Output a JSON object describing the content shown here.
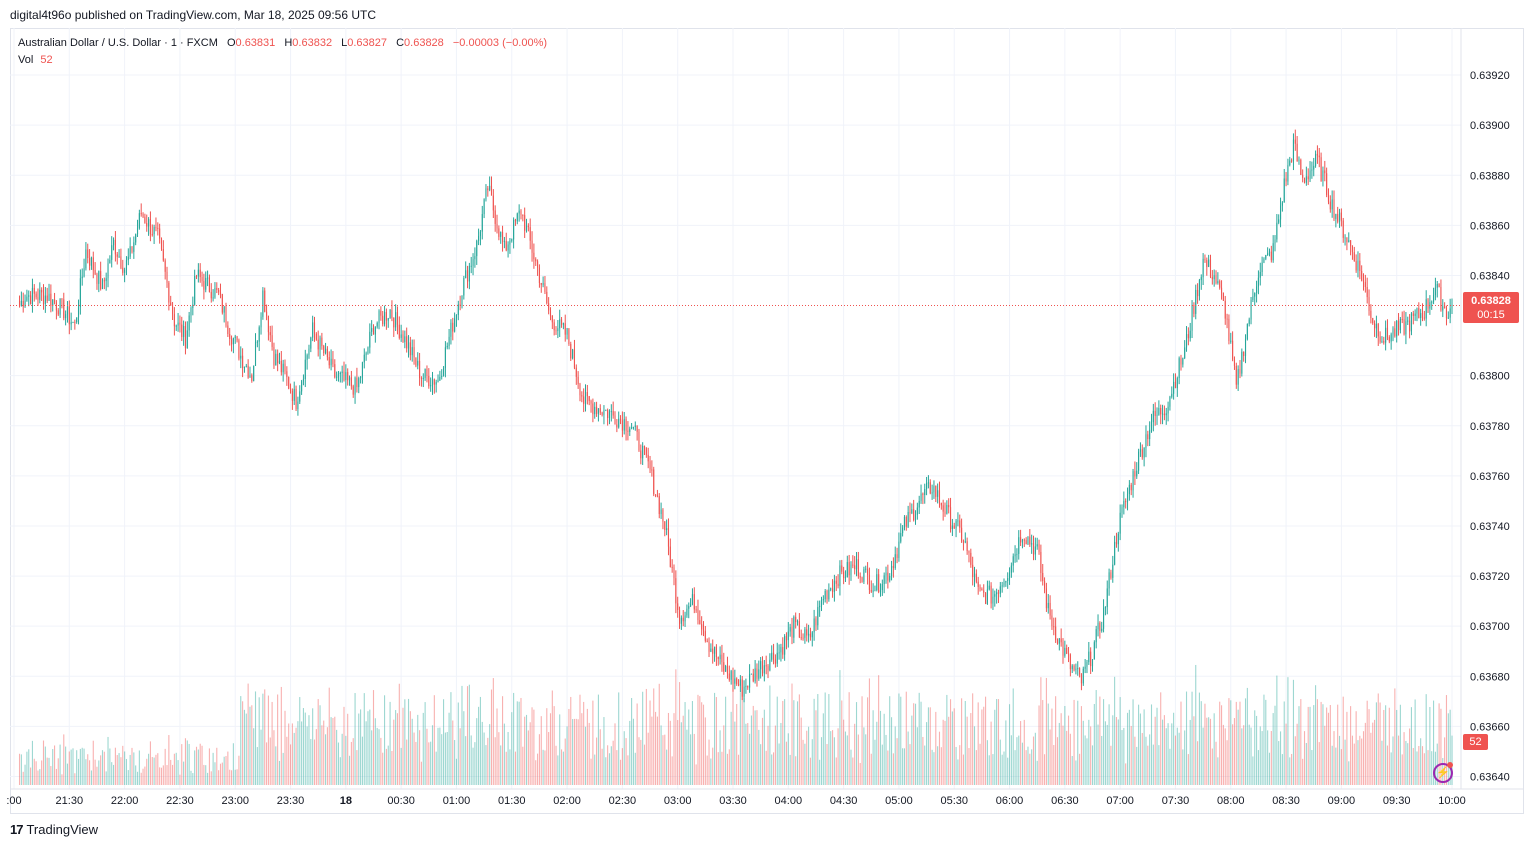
{
  "publish_line": "digital4t96o published on TradingView.com, Mar 18, 2025 09:56 UTC",
  "legend": {
    "symbol": "Australian Dollar / U.S. Dollar · 1 · FXCM",
    "o_label": "O",
    "o": "0.63831",
    "h_label": "H",
    "h": "0.63832",
    "l_label": "L",
    "l": "0.63827",
    "c_label": "C",
    "c": "0.63828",
    "change": "−0.00003 (−0.00%)",
    "vol_label": "Vol",
    "vol": "52"
  },
  "badges": {
    "price": "0.63828",
    "countdown": "00:15",
    "volume": "52"
  },
  "footer": {
    "logo_mark": "17",
    "logo_text": "TradingView"
  },
  "colors": {
    "up": "#26a69a",
    "down": "#ef5350",
    "grid": "#f0f3fa",
    "text": "#131722",
    "accent": "#9c27b0"
  },
  "icons": {
    "bolt": "lightning-icon"
  },
  "chart_data": {
    "type": "candlestick",
    "title": "Australian Dollar / U.S. Dollar · 1 · FXCM",
    "ylim": [
      0.63635,
      0.63932
    ],
    "current_price": 0.63828,
    "y_ticks": [
      "0.63920",
      "0.63900",
      "0.63880",
      "0.63860",
      "0.63840",
      "0.63800",
      "0.63780",
      "0.63760",
      "0.63740",
      "0.63720",
      "0.63700",
      "0.63680",
      "0.63660",
      "0.63640"
    ],
    "x_ticks": [
      ":00",
      "21:30",
      "22:00",
      "22:30",
      "23:00",
      "23:30",
      "18",
      "00:30",
      "01:00",
      "01:30",
      "02:00",
      "02:30",
      "03:00",
      "03:30",
      "04:00",
      "04:30",
      "05:00",
      "05:30",
      "06:00",
      "06:30",
      "07:00",
      "07:30",
      "08:00",
      "08:30",
      "09:00",
      "09:30",
      "10:00"
    ],
    "x_tick_minutes": [
      -3,
      27,
      57,
      87,
      117,
      147,
      177,
      207,
      237,
      267,
      297,
      327,
      357,
      387,
      417,
      447,
      477,
      507,
      537,
      567,
      597,
      627,
      657,
      687,
      717,
      747,
      777
    ],
    "keypoints": [
      [
        0,
        0.63828
      ],
      [
        3,
        0.63832
      ],
      [
        15,
        0.63832
      ],
      [
        24,
        0.63826
      ],
      [
        30,
        0.6382
      ],
      [
        36,
        0.6385
      ],
      [
        45,
        0.63835
      ],
      [
        51,
        0.63853
      ],
      [
        57,
        0.63843
      ],
      [
        60,
        0.63848
      ],
      [
        66,
        0.63865
      ],
      [
        75,
        0.63855
      ],
      [
        84,
        0.63822
      ],
      [
        90,
        0.63815
      ],
      [
        96,
        0.6384
      ],
      [
        102,
        0.63836
      ],
      [
        108,
        0.63832
      ],
      [
        114,
        0.63818
      ],
      [
        120,
        0.63808
      ],
      [
        126,
        0.638
      ],
      [
        132,
        0.63833
      ],
      [
        138,
        0.63808
      ],
      [
        144,
        0.638
      ],
      [
        150,
        0.6379
      ],
      [
        159,
        0.63818
      ],
      [
        171,
        0.638
      ],
      [
        183,
        0.63795
      ],
      [
        192,
        0.6382
      ],
      [
        201,
        0.63826
      ],
      [
        210,
        0.63813
      ],
      [
        218,
        0.638
      ],
      [
        227,
        0.63798
      ],
      [
        240,
        0.63835
      ],
      [
        248,
        0.63852
      ],
      [
        254,
        0.63875
      ],
      [
        263,
        0.6385
      ],
      [
        272,
        0.63866
      ],
      [
        282,
        0.6384
      ],
      [
        288,
        0.63823
      ],
      [
        297,
        0.63816
      ],
      [
        306,
        0.6379
      ],
      [
        320,
        0.63785
      ],
      [
        332,
        0.6378
      ],
      [
        342,
        0.63762
      ],
      [
        350,
        0.6374
      ],
      [
        358,
        0.63704
      ],
      [
        366,
        0.6371
      ],
      [
        374,
        0.63693
      ],
      [
        382,
        0.63683
      ],
      [
        392,
        0.63675
      ],
      [
        402,
        0.63684
      ],
      [
        412,
        0.6369
      ],
      [
        420,
        0.637
      ],
      [
        428,
        0.63694
      ],
      [
        436,
        0.63712
      ],
      [
        444,
        0.6372
      ],
      [
        454,
        0.63724
      ],
      [
        464,
        0.63716
      ],
      [
        472,
        0.63722
      ],
      [
        480,
        0.6374
      ],
      [
        488,
        0.6375
      ],
      [
        495,
        0.63756
      ],
      [
        503,
        0.63745
      ],
      [
        512,
        0.63735
      ],
      [
        520,
        0.63713
      ],
      [
        528,
        0.63712
      ],
      [
        536,
        0.63722
      ],
      [
        544,
        0.63738
      ],
      [
        552,
        0.6373
      ],
      [
        558,
        0.63706
      ],
      [
        564,
        0.63694
      ],
      [
        570,
        0.63684
      ],
      [
        576,
        0.63678
      ],
      [
        582,
        0.6369
      ],
      [
        588,
        0.63705
      ],
      [
        596,
        0.6374
      ],
      [
        606,
        0.63765
      ],
      [
        614,
        0.63782
      ],
      [
        622,
        0.63788
      ],
      [
        632,
        0.6381
      ],
      [
        642,
        0.63846
      ],
      [
        648,
        0.6384
      ],
      [
        654,
        0.63826
      ],
      [
        660,
        0.63795
      ],
      [
        666,
        0.6382
      ],
      [
        672,
        0.63842
      ],
      [
        680,
        0.6385
      ],
      [
        686,
        0.63876
      ],
      [
        691,
        0.63892
      ],
      [
        696,
        0.63878
      ],
      [
        704,
        0.63886
      ],
      [
        712,
        0.63868
      ],
      [
        720,
        0.63855
      ],
      [
        728,
        0.6384
      ],
      [
        734,
        0.63822
      ],
      [
        740,
        0.63815
      ],
      [
        752,
        0.6382
      ],
      [
        762,
        0.63826
      ],
      [
        768,
        0.63835
      ],
      [
        774,
        0.63825
      ],
      [
        777,
        0.63828
      ]
    ],
    "volume_scale_max": 200,
    "volume_last": 52
  }
}
